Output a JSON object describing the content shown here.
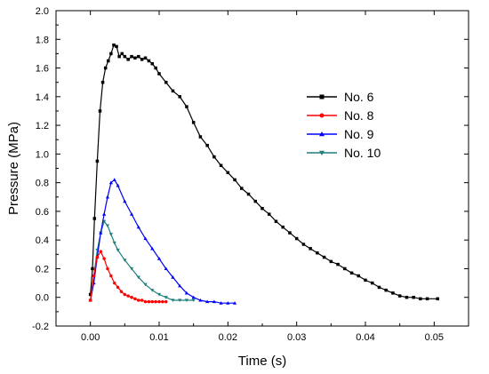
{
  "chart_data": {
    "type": "line",
    "xlabel": "Time (s)",
    "ylabel": "Pressure (MPa)",
    "xlim": [
      -0.005,
      0.055
    ],
    "ylim": [
      -0.2,
      2.0
    ],
    "xticks": [
      0.0,
      0.01,
      0.02,
      0.03,
      0.04,
      0.05
    ],
    "xtick_labels": [
      "0.00",
      "0.01",
      "0.02",
      "0.03",
      "0.04",
      "0.05"
    ],
    "yticks": [
      -0.2,
      0.0,
      0.2,
      0.4,
      0.6,
      0.8,
      1.0,
      1.2,
      1.4,
      1.6,
      1.8,
      2.0
    ],
    "ytick_labels": [
      "-0.2",
      "0.0",
      "0.2",
      "0.4",
      "0.6",
      "0.8",
      "1.0",
      "1.2",
      "1.4",
      "1.6",
      "1.8",
      "2.0"
    ],
    "grid": false,
    "legend_position": "upper-right",
    "series": [
      {
        "name": "No. 6",
        "color": "#000000",
        "marker": "square",
        "x": [
          0.0,
          0.0003,
          0.0006,
          0.001,
          0.0014,
          0.0018,
          0.0022,
          0.0026,
          0.003,
          0.0034,
          0.0038,
          0.0042,
          0.0046,
          0.005,
          0.0055,
          0.006,
          0.0065,
          0.007,
          0.0075,
          0.008,
          0.0085,
          0.009,
          0.0095,
          0.01,
          0.011,
          0.012,
          0.013,
          0.014,
          0.015,
          0.016,
          0.017,
          0.018,
          0.019,
          0.02,
          0.021,
          0.022,
          0.023,
          0.024,
          0.025,
          0.026,
          0.027,
          0.028,
          0.029,
          0.03,
          0.031,
          0.032,
          0.033,
          0.034,
          0.035,
          0.036,
          0.037,
          0.038,
          0.039,
          0.04,
          0.041,
          0.042,
          0.043,
          0.044,
          0.045,
          0.046,
          0.047,
          0.048,
          0.049,
          0.0505
        ],
        "y": [
          0.02,
          0.2,
          0.55,
          0.95,
          1.3,
          1.5,
          1.6,
          1.65,
          1.7,
          1.76,
          1.75,
          1.68,
          1.7,
          1.68,
          1.66,
          1.68,
          1.67,
          1.68,
          1.66,
          1.67,
          1.65,
          1.63,
          1.6,
          1.56,
          1.5,
          1.44,
          1.4,
          1.33,
          1.22,
          1.12,
          1.06,
          0.98,
          0.92,
          0.87,
          0.82,
          0.76,
          0.72,
          0.67,
          0.62,
          0.58,
          0.53,
          0.49,
          0.45,
          0.41,
          0.37,
          0.34,
          0.31,
          0.28,
          0.25,
          0.23,
          0.2,
          0.17,
          0.15,
          0.12,
          0.1,
          0.07,
          0.05,
          0.03,
          0.01,
          0.0,
          0.0,
          -0.01,
          -0.01,
          -0.01
        ]
      },
      {
        "name": "No. 8",
        "color": "#ff0000",
        "marker": "circle",
        "x": [
          0.0,
          0.0005,
          0.001,
          0.0015,
          0.002,
          0.0025,
          0.003,
          0.0035,
          0.004,
          0.0045,
          0.005,
          0.0055,
          0.006,
          0.0065,
          0.007,
          0.0075,
          0.008,
          0.0085,
          0.009,
          0.0095,
          0.01,
          0.0105,
          0.011
        ],
        "y": [
          -0.02,
          0.15,
          0.28,
          0.32,
          0.27,
          0.2,
          0.15,
          0.1,
          0.07,
          0.04,
          0.02,
          0.01,
          0.0,
          -0.01,
          -0.02,
          -0.02,
          -0.03,
          -0.03,
          -0.03,
          -0.03,
          -0.03,
          -0.03,
          -0.03
        ]
      },
      {
        "name": "No. 9",
        "color": "#0000ff",
        "marker": "triangle-up",
        "x": [
          0.0,
          0.0005,
          0.001,
          0.0015,
          0.002,
          0.0025,
          0.003,
          0.0035,
          0.004,
          0.005,
          0.006,
          0.007,
          0.008,
          0.009,
          0.01,
          0.011,
          0.012,
          0.013,
          0.014,
          0.015,
          0.016,
          0.017,
          0.018,
          0.019,
          0.02,
          0.021
        ],
        "y": [
          -0.02,
          0.1,
          0.28,
          0.45,
          0.58,
          0.7,
          0.8,
          0.82,
          0.78,
          0.67,
          0.58,
          0.49,
          0.41,
          0.34,
          0.27,
          0.2,
          0.14,
          0.08,
          0.03,
          0.0,
          -0.02,
          -0.03,
          -0.03,
          -0.04,
          -0.04,
          -0.04
        ]
      },
      {
        "name": "No. 10",
        "color": "#1f7f7f",
        "marker": "triangle-down",
        "x": [
          0.0,
          0.0005,
          0.001,
          0.0015,
          0.002,
          0.0025,
          0.003,
          0.0035,
          0.004,
          0.005,
          0.006,
          0.007,
          0.008,
          0.009,
          0.01,
          0.011,
          0.012,
          0.013,
          0.014,
          0.015
        ],
        "y": [
          -0.02,
          0.15,
          0.33,
          0.45,
          0.53,
          0.5,
          0.44,
          0.38,
          0.33,
          0.26,
          0.2,
          0.14,
          0.09,
          0.05,
          0.02,
          0.0,
          -0.02,
          -0.02,
          -0.02,
          -0.02
        ]
      }
    ]
  }
}
